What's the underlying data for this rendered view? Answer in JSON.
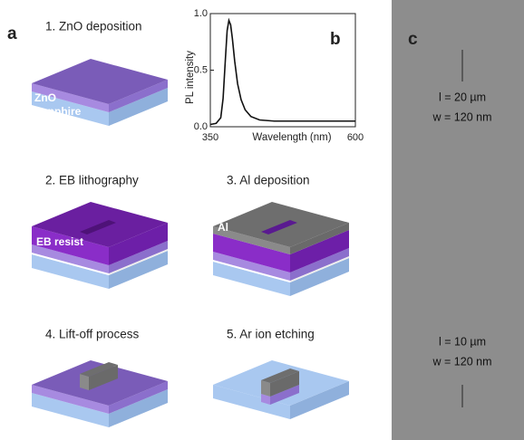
{
  "panels": {
    "a": "a",
    "b": "b",
    "c": "c"
  },
  "steps": [
    "1. ZnO deposition",
    "2. EB lithography",
    "3. Al deposition",
    "4. Lift-off process",
    "5. Ar ion etching"
  ],
  "layers": {
    "zno": "ZnO",
    "sapphire": "Sapphire",
    "eb_resist": "EB resist",
    "al": "Al"
  },
  "scale_labels": [
    {
      "length": "l = 20 µm",
      "width": "w = 120 nm"
    },
    {
      "length": "l = 10 µm",
      "width": "w = 120 nm"
    }
  ],
  "chart_data": {
    "type": "line",
    "xlabel": "Wavelength (nm)",
    "ylabel": "PL intensity",
    "color": "#111111",
    "x": [
      350,
      360,
      368,
      372,
      376,
      379,
      382,
      385,
      388,
      392,
      397,
      403,
      410,
      420,
      435,
      460,
      500,
      550,
      600
    ],
    "values": [
      0.02,
      0.03,
      0.08,
      0.25,
      0.6,
      0.85,
      0.94,
      0.9,
      0.78,
      0.58,
      0.38,
      0.24,
      0.15,
      0.09,
      0.06,
      0.05,
      0.05,
      0.05,
      0.05
    ],
    "xlim": [
      350,
      600
    ],
    "ylim": [
      0,
      1
    ],
    "xticks": [
      350,
      600
    ],
    "yticks": [
      {
        "value": 0,
        "label": "0.0"
      },
      {
        "value": 0.5,
        "label": "0.5"
      },
      {
        "value": 1,
        "label": "1.0"
      }
    ]
  }
}
